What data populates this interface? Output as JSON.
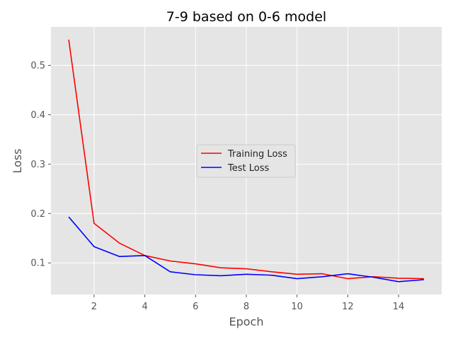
{
  "chart_data": {
    "type": "line",
    "title": "7-9 based on 0-6 model",
    "xlabel": "Epoch",
    "ylabel": "Loss",
    "xlim": [
      0.3,
      15.7
    ],
    "ylim": [
      0.036,
      0.578
    ],
    "xticks": [
      2,
      4,
      6,
      8,
      10,
      12,
      14
    ],
    "yticks": [
      0.1,
      0.2,
      0.3,
      0.4,
      0.5
    ],
    "grid": true,
    "legend_position": "center-right",
    "x": [
      1,
      2,
      3,
      4,
      5,
      6,
      7,
      8,
      9,
      10,
      11,
      12,
      13,
      14,
      15
    ],
    "series": [
      {
        "name": "Training Loss",
        "color": "#ff0000",
        "values": [
          0.552,
          0.18,
          0.14,
          0.115,
          0.104,
          0.098,
          0.09,
          0.088,
          0.082,
          0.077,
          0.078,
          0.068,
          0.072,
          0.069,
          0.068
        ]
      },
      {
        "name": "Test Loss",
        "color": "#0000ff",
        "values": [
          0.193,
          0.133,
          0.113,
          0.115,
          0.082,
          0.076,
          0.074,
          0.077,
          0.075,
          0.068,
          0.072,
          0.078,
          0.071,
          0.062,
          0.066
        ]
      }
    ]
  }
}
